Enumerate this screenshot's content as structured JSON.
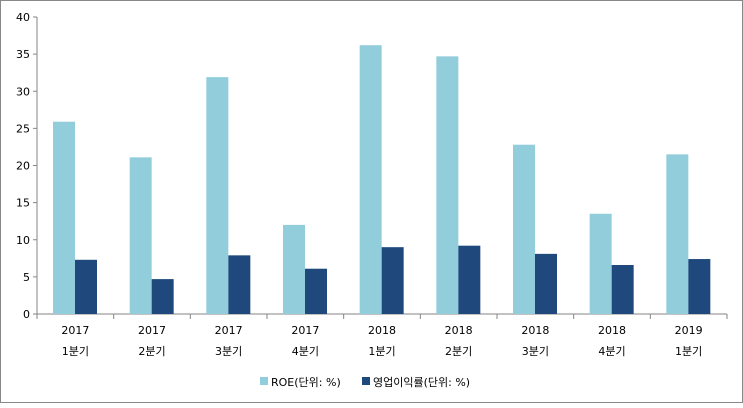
{
  "chart_data": {
    "type": "bar",
    "title": "",
    "categories": [
      [
        "2017",
        "1분기"
      ],
      [
        "2017",
        "2분기"
      ],
      [
        "2017",
        "3분기"
      ],
      [
        "2017",
        "4분기"
      ],
      [
        "2018",
        "1분기"
      ],
      [
        "2018",
        "2분기"
      ],
      [
        "2018",
        "3분기"
      ],
      [
        "2018",
        "4분기"
      ],
      [
        "2019",
        "1분기"
      ]
    ],
    "series": [
      {
        "name": "ROE(단위: %)",
        "color": "#92CDDC",
        "values": [
          25.9,
          21.1,
          31.9,
          12.0,
          36.2,
          34.7,
          22.8,
          13.5,
          21.5
        ]
      },
      {
        "name": "영업이익률(단위: %)",
        "color": "#1F497D",
        "values": [
          7.3,
          4.7,
          7.9,
          6.1,
          9.0,
          9.2,
          8.1,
          6.6,
          7.4
        ]
      }
    ],
    "ylim": [
      0,
      40
    ],
    "yticks": [
      0,
      5,
      10,
      15,
      20,
      25,
      30,
      35,
      40
    ],
    "legend": "bottom",
    "grid": false
  }
}
